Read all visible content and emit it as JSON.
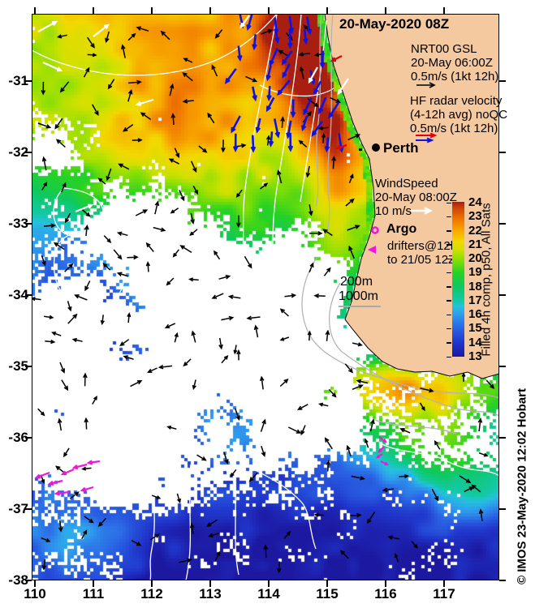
{
  "title": "20-May-2020 08Z",
  "labels": {
    "city": "Perth",
    "copyright": "© IMOS 23-May-2020 12:02 Hobart"
  },
  "legend": {
    "gsl_1": "NRT00 GSL",
    "gsl_2": "20-May 06:00Z",
    "gsl_3": "0.5m/s (1kt 12h)",
    "hf_1": "HF radar velocity",
    "hf_2": "(4-12h avg) noQC",
    "hf_3": "0.5m/s (1kt 12h)",
    "wind_1": "WindSpeed",
    "wind_2": "20-May 08:00Z",
    "wind_3": "10 m/s",
    "argo": "Argo",
    "drifters_1": "drifters@12h",
    "drifters_2": "to 21/05 12Z",
    "bathy_200": "200m",
    "bathy_1000": "1000m"
  },
  "axes": {
    "x_ticks": [
      "110",
      "111",
      "112",
      "113",
      "114",
      "115",
      "116",
      "117"
    ],
    "y_ticks": [
      "-31",
      "-32",
      "-33",
      "-34",
      "-35",
      "-36",
      "-37",
      "-38"
    ]
  },
  "colorbar": {
    "label": "Filled 4h comp, p50, All Sats",
    "ticks": [
      "24",
      "23",
      "22",
      "21",
      "20",
      "19",
      "18",
      "17",
      "16",
      "15",
      "14",
      "13"
    ],
    "min": 13,
    "max": 24,
    "stops": [
      [
        13,
        "#1c18a0"
      ],
      [
        14,
        "#2036cc"
      ],
      [
        15,
        "#2a62e4"
      ],
      [
        16,
        "#2f9cee"
      ],
      [
        16.6,
        "#25c2dc"
      ],
      [
        17,
        "#14c8a6"
      ],
      [
        18,
        "#0ec860"
      ],
      [
        19,
        "#27d223"
      ],
      [
        19.8,
        "#7ede06"
      ],
      [
        20.6,
        "#cfe100"
      ],
      [
        21.2,
        "#f2d800"
      ],
      [
        22,
        "#f8a500"
      ],
      [
        22.8,
        "#ee7300"
      ],
      [
        23.5,
        "#d44708"
      ],
      [
        24,
        "#a81e10"
      ]
    ]
  },
  "colors": {
    "land": "#f5c9a0",
    "coast": "#000000",
    "current_arrow": "#000000",
    "hf_arrow": "#1212e0",
    "hf_strong": "#e80000",
    "wind_arrow": "#ffffff",
    "drifter": "#f018d8",
    "contour_deep": "#ffffff",
    "contour_shelf": "#b4b4b4"
  },
  "field": {
    "base_t_at_31s": 20.9,
    "lapse_per_deg": 1.12,
    "blobs": [
      [
        110.3,
        -30.4,
        1.6,
        0.8,
        -1.1
      ],
      [
        114.55,
        -30.5,
        0.75,
        0.55,
        1.7
      ],
      [
        115.05,
        -31.7,
        0.55,
        0.65,
        1.3
      ],
      [
        113.1,
        -31.9,
        1.2,
        1.0,
        1.5
      ],
      [
        112.2,
        -31.2,
        1.1,
        0.8,
        1.1
      ],
      [
        111.6,
        -32.2,
        0.9,
        0.7,
        0.6
      ],
      [
        110.45,
        -33.4,
        1.2,
        0.9,
        -2.1
      ],
      [
        110.9,
        -34.4,
        1.4,
        1.0,
        -2.3
      ],
      [
        112.5,
        -35.3,
        1.5,
        0.9,
        -1.3
      ],
      [
        116.4,
        -35.3,
        1.7,
        0.42,
        4.3
      ],
      [
        116.1,
        -35.65,
        2.0,
        0.6,
        2.0
      ],
      [
        116.85,
        -36.15,
        1.25,
        0.55,
        2.6
      ],
      [
        117.6,
        -36.7,
        0.9,
        0.5,
        2.2
      ],
      [
        113.9,
        -37.4,
        1.7,
        1.0,
        -0.5
      ],
      [
        110.55,
        -37.55,
        1.1,
        0.8,
        2.3
      ],
      [
        113.4,
        -35.95,
        0.6,
        0.4,
        1.1
      ]
    ],
    "white_blobs": [
      [
        111.9,
        -32.95,
        0.85,
        0.6,
        0.75
      ],
      [
        110.25,
        -31.9,
        0.55,
        0.5,
        0.6
      ],
      [
        113.0,
        -34.5,
        1.3,
        0.8,
        0.6
      ],
      [
        111.5,
        -35.8,
        1.1,
        0.8,
        0.55
      ],
      [
        114.3,
        -34.95,
        1.0,
        0.6,
        0.6
      ],
      [
        115.25,
        -34.15,
        0.75,
        0.5,
        0.65
      ],
      [
        110.5,
        -36.35,
        0.95,
        0.6,
        0.5
      ],
      [
        114.95,
        -35.9,
        0.85,
        0.5,
        0.5
      ],
      [
        112.2,
        -36.6,
        0.8,
        0.5,
        0.4
      ],
      [
        110.15,
        -35.0,
        0.7,
        0.9,
        0.5
      ],
      [
        112.6,
        -33.6,
        0.9,
        0.5,
        0.5
      ],
      [
        114.6,
        -33.5,
        0.6,
        0.5,
        0.4
      ]
    ]
  }
}
